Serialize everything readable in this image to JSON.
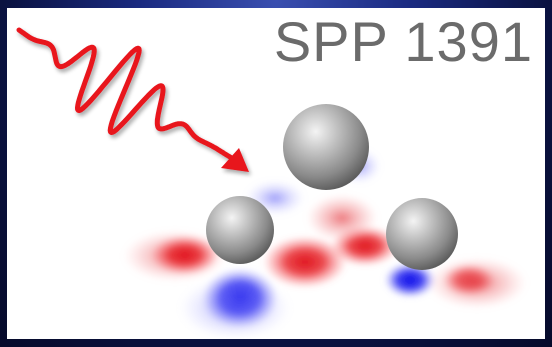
{
  "title": "SPP 1391",
  "colors": {
    "background": "#0a1240",
    "panel": "#ffffff",
    "title_text": "#6b6b6b",
    "pulse": "#e8121e",
    "orbital_positive": "#e0141e",
    "orbital_negative": "#1010e0",
    "atom": "#9a9a9a"
  },
  "elements": [
    {
      "name": "laser-pulse-wave",
      "kind": "red oscillating pulse with arrowhead"
    },
    {
      "name": "atom-top",
      "kind": "grey sphere"
    },
    {
      "name": "atom-left",
      "kind": "grey sphere"
    },
    {
      "name": "atom-right",
      "kind": "grey sphere"
    },
    {
      "name": "orbital-lobes",
      "kind": "red and blue electron density lobes"
    }
  ]
}
